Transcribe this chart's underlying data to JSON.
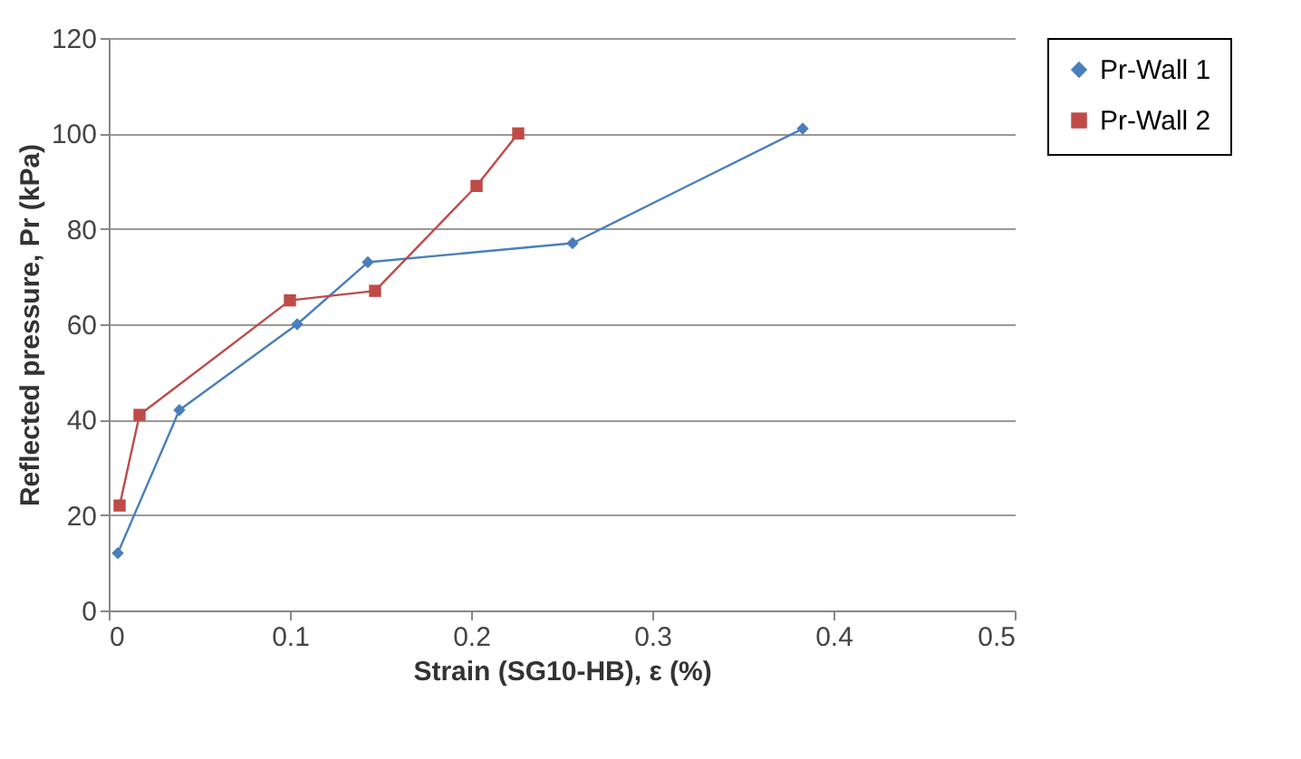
{
  "chart_data": {
    "type": "line",
    "xlabel": "Strain (SG10-HB), ε (%)",
    "ylabel": "Reflected pressure, Pr (kPa)",
    "xlim": [
      0,
      0.5
    ],
    "xticks": [
      0,
      0.1,
      0.2,
      0.3,
      0.4,
      0.5
    ],
    "ylim": [
      0,
      120
    ],
    "yticks": [
      0,
      20,
      40,
      60,
      80,
      100,
      120
    ],
    "grid": "y",
    "legend": "right",
    "line_style": "solid",
    "series": [
      {
        "name": "Pr-Wall 1",
        "color": "#4a7ebb",
        "marker": "diamond",
        "x": [
          0.005,
          0.039,
          0.104,
          0.143,
          0.256,
          0.383
        ],
        "values": [
          12,
          42,
          60,
          73,
          77,
          101
        ]
      },
      {
        "name": "Pr-Wall 2",
        "color": "#be4b48",
        "marker": "square",
        "x": [
          0.006,
          0.017,
          0.1,
          0.147,
          0.203,
          0.226
        ],
        "values": [
          22,
          41,
          65,
          67,
          89,
          100
        ]
      }
    ]
  }
}
